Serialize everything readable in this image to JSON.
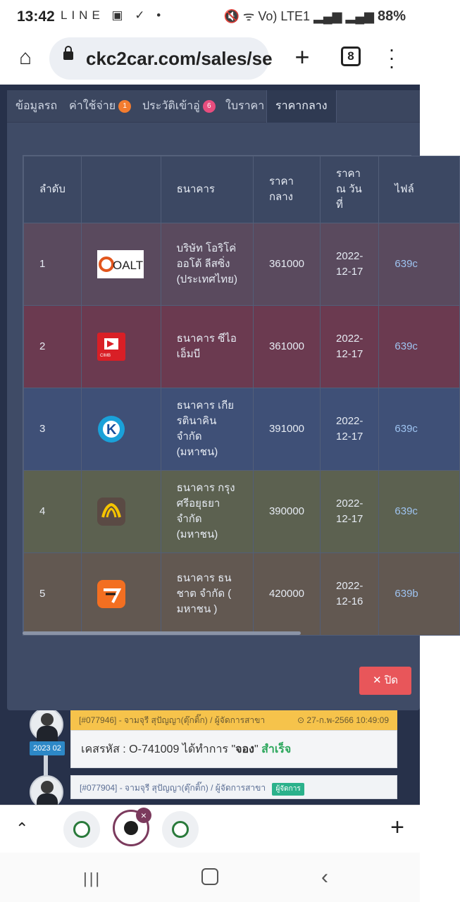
{
  "status_bar": {
    "time": "13:42",
    "left_icons": "LINE ▣ ✓ •",
    "right_icons": "🔇 ᯤ Vo) LTE1 ▂▄▆ ▂▄▆",
    "battery": "88%"
  },
  "browser": {
    "url": "ckc2car.com/sales/se",
    "tab_count": "8",
    "home_icon": "⌂",
    "plus_icon": "+",
    "menu_icon": "⋮"
  },
  "modal": {
    "tabs": [
      {
        "label": "ข้อมูลรถ",
        "badge": ""
      },
      {
        "label": "ค่าใช้จ่าย",
        "badge": "1"
      },
      {
        "label": "ประวัติเข้าอู่",
        "badge": "6"
      },
      {
        "label": "ใบราคา",
        "badge": ""
      },
      {
        "label": "ราคากลาง",
        "badge": ""
      }
    ],
    "table": {
      "headers": [
        "ลำดับ",
        "",
        "ธนาคาร",
        "ราคา กลาง",
        "ราคา ณ วัน ที่",
        "ไฟล์"
      ],
      "rows": [
        {
          "no": "1",
          "logo": "OALT",
          "bank": "บริษัท โอริโค่ ออโต้ ลีสซิ่ง (ประเทศไทย)",
          "price": "361000",
          "date": "2022-12-17",
          "file": "639c"
        },
        {
          "no": "2",
          "logo": "CIMB",
          "bank": "ธนาคาร ซีไอเอ็มบี",
          "price": "361000",
          "date": "2022-12-17",
          "file": "639c"
        },
        {
          "no": "3",
          "logo": "K",
          "bank": "ธนาคาร เกียรตินาคิน จำกัด (มหาชน)",
          "price": "391000",
          "date": "2022-12-17",
          "file": "639c"
        },
        {
          "no": "4",
          "logo": "KRUNGSRI",
          "bank": "ธนาคาร กรุงศรีอยุธยา จำกัด (มหาชน)",
          "price": "390000",
          "date": "2022-12-17",
          "file": "639c"
        },
        {
          "no": "5",
          "logo": "TTB",
          "bank": "ธนาคาร ธนชาต จำกัด ( มหาชน )",
          "price": "420000",
          "date": "2022-12-16",
          "file": "639b"
        }
      ]
    },
    "close_label": "✕ ปิด"
  },
  "timeline": {
    "year_badge": "2023 02",
    "card1_head": "[#077946] - จามจุรี สุปัญญา(ตุ๊กติ๊ก) / ผู้จัดการสาขา",
    "card1_date": "⊙ 27-ก.พ-2566 10:49:09",
    "card1_prefix": "เคสรหัส : O-741009 ได้ทำการ \"",
    "card1_action": "จอง",
    "card1_mid": "\" ",
    "card1_status": "สำเร็จ",
    "card2_head": "[#077904] - จามจุรี สุปัญญา(ตุ๊กติ๊ก) / ผู้จัดการสาขา",
    "card2_badge": "ผู้จัดการ"
  },
  "tab_strip": {
    "chevron": "⌃",
    "close_badge": "×",
    "new_tab": "+"
  },
  "nav": {
    "recent": "|||",
    "back": "‹"
  },
  "colors": {
    "modal_bg": "#3f4b66",
    "accent_link": "#9ec3f0",
    "close_button": "#e8565a"
  }
}
